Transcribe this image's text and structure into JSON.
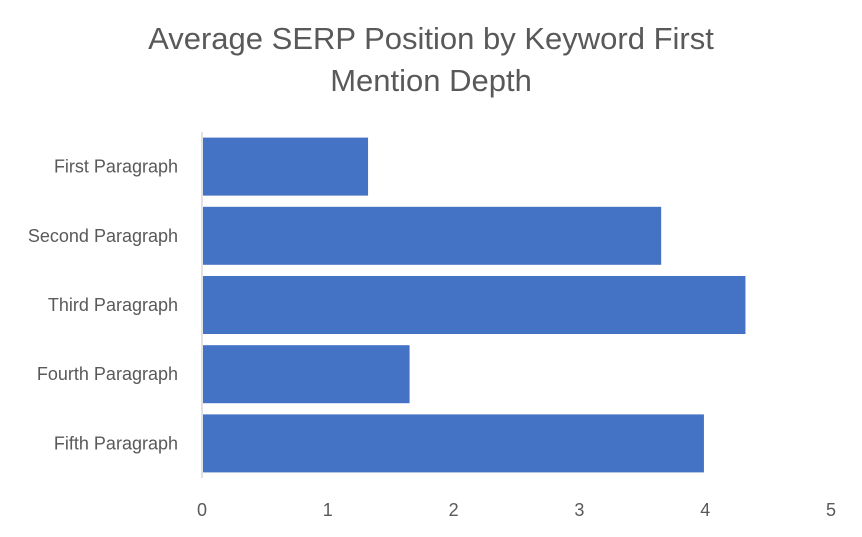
{
  "chart_title_lines": [
    "Average SERP Position by Keyword First",
    "Mention Depth"
  ],
  "chart_data": {
    "type": "bar",
    "orientation": "horizontal",
    "title": "Average SERP Position by Keyword First Mention Depth",
    "xlabel": "",
    "ylabel": "",
    "categories": [
      "First Paragraph",
      "Second Paragraph",
      "Third Paragraph",
      "Fourth Paragraph",
      "Fifth Paragraph"
    ],
    "values": [
      1.32,
      3.65,
      4.32,
      1.65,
      3.99
    ],
    "xlim": [
      0,
      5
    ],
    "xticks": [
      "0",
      "1",
      "2",
      "3",
      "4",
      "5"
    ],
    "grid": false,
    "legend": "none",
    "bar_color": "#4472C4",
    "axis_color": "#D9D9D9",
    "text_color": "#595959"
  }
}
